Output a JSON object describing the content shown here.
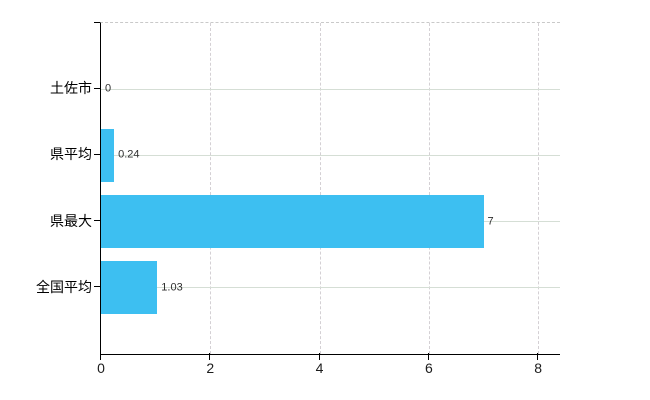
{
  "chart_data": {
    "type": "bar",
    "orientation": "horizontal",
    "title": "",
    "xlabel": "",
    "ylabel": "",
    "categories": [
      "土佐市",
      "県平均",
      "県最大",
      "全国平均"
    ],
    "values": [
      0,
      0.24,
      7,
      1.03
    ],
    "value_labels": [
      "0",
      "0.24",
      "7",
      "1.03"
    ],
    "x_ticks": [
      0,
      2,
      4,
      6,
      8
    ],
    "x_tick_labels": [
      "0",
      "2",
      "4",
      "6",
      "8"
    ],
    "xlim": [
      0,
      8.4
    ],
    "grid": true,
    "legend": "none",
    "colors": {
      "bar": "#3dbff1",
      "h_gridline": "#d5ded5",
      "v_gridline": "#d4d0d4",
      "top_border": "#c9c9c9",
      "axis": "#000000",
      "value_text": "#2f2f2f",
      "category_text": "#000000",
      "tick_text": "#1c1c1c",
      "background": "#ffffff"
    }
  }
}
